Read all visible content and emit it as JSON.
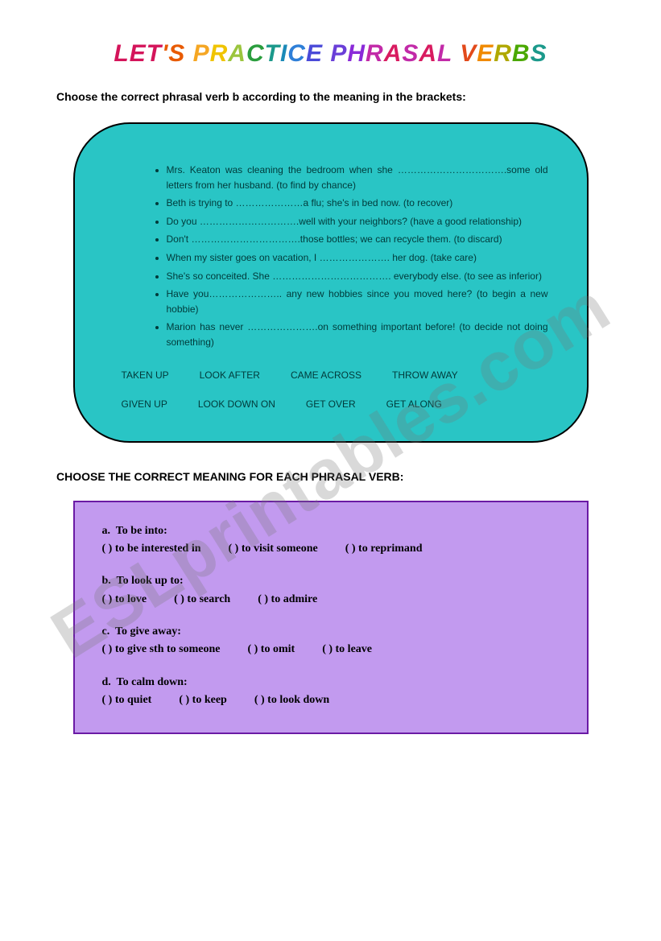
{
  "title_text": "LET'S PRACTICE PHRASAL VERBS",
  "instruction1": "Choose the correct phrasal verb b according to the meaning in the brackets:",
  "exercise1": {
    "items": [
      "Mrs. Keaton was cleaning the bedroom when she …………………………….some old letters from her husband. (to find by chance)",
      "Beth is trying to …………………a flu; she's in bed now. (to recover)",
      "Do you ………………………….well with your neighbors? (have a good relationship)",
      "Don't …………………………….those bottles; we can recycle them. (to discard)",
      "When my sister goes on vacation, I …………………. her dog. (take care)",
      "She's so conceited. She ………………………………. everybody else. (to see as inferior)",
      "Have you………………….. any new hobbies since you moved here? (to begin a new hobbie)",
      "Marion has never ………………….on something important before! (to decide not doing something)"
    ],
    "options_row1": [
      "TAKEN UP",
      "LOOK AFTER",
      "CAME ACROSS",
      "THROW AWAY"
    ],
    "options_row2": [
      "GIVEN UP",
      "LOOK DOWN ON",
      "GET OVER",
      "GET ALONG"
    ]
  },
  "heading2": "CHOOSE THE CORRECT MEANING FOR EACH PHRASAL VERB:",
  "exercise2": {
    "questions": [
      {
        "letter": "a.",
        "verb": "To be into:",
        "choices": [
          "(   ) to be interested in",
          "(   ) to visit someone",
          "(   ) to reprimand"
        ]
      },
      {
        "letter": "b.",
        "verb": "To look up to:",
        "choices": [
          "(   ) to love",
          "(   ) to search",
          "(   ) to admire"
        ]
      },
      {
        "letter": "c.",
        "verb": "To give away:",
        "choices": [
          "(   ) to give sth to someone",
          "(   ) to omit",
          "(   ) to leave"
        ]
      },
      {
        "letter": "d.",
        "verb": "To calm down:",
        "choices": [
          "(   ) to quiet",
          "(   ) to keep",
          "(   ) to look down"
        ]
      }
    ]
  },
  "watermark": "ESLprintables.com",
  "colors": {
    "teal_bg": "#29c5c5",
    "teal_text": "#003a3a",
    "purple_bg": "#c29aef",
    "purple_border": "#6a1aa5"
  }
}
